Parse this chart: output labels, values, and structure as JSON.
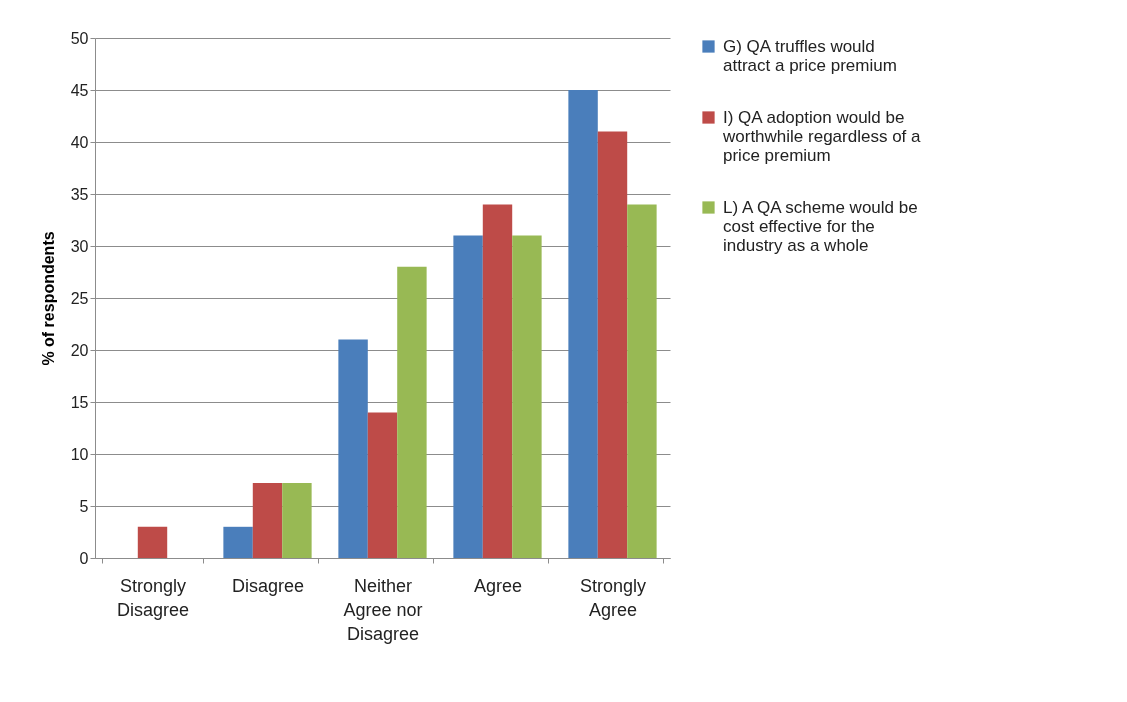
{
  "chart_data": {
    "type": "bar",
    "ylabel": "% of respondents",
    "categories": [
      "Strongly Disagree",
      "Disagree",
      "Neither Agree nor Disagree",
      "Agree",
      "Strongly Agree"
    ],
    "series": [
      {
        "name": "G) QA truffles would attract a price premium",
        "color": "#4a7ebb",
        "values": [
          0,
          3,
          21,
          31,
          45
        ]
      },
      {
        "name": "I) QA adoption would be worthwhile regardless of a price premium",
        "color": "#be4b48",
        "values": [
          3,
          7.2,
          14,
          34,
          41
        ]
      },
      {
        "name": "L) A QA scheme would be cost effective for the industry as a whole",
        "color": "#98b954",
        "values": [
          0,
          7.2,
          28,
          31,
          34
        ]
      }
    ],
    "ylim": [
      0,
      50
    ],
    "yticks": [
      0,
      5,
      10,
      15,
      20,
      25,
      30,
      35,
      40,
      45,
      50
    ],
    "grid": "y",
    "legend": "right"
  }
}
